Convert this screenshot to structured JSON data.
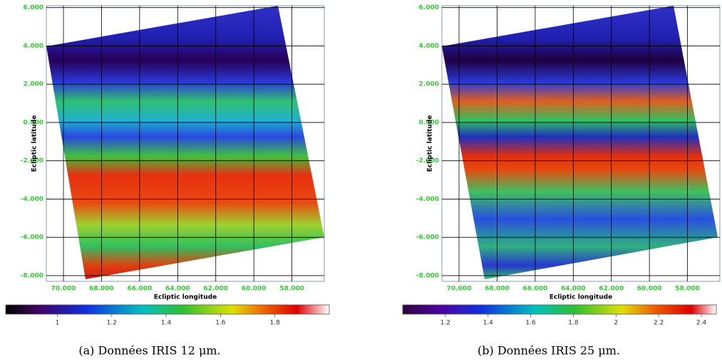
{
  "chart_data": [
    {
      "type": "heatmap",
      "xlabel": "Ecliptic longitude",
      "ylabel": "Ecliptic latitude",
      "xlim": [
        70.9,
        56.3
      ],
      "ylim": [
        -8.3,
        6.1
      ],
      "xticks": [
        {
          "value": 70,
          "label": "70.000"
        },
        {
          "value": 68,
          "label": "68.000"
        },
        {
          "value": 66,
          "label": "66.000"
        },
        {
          "value": 64,
          "label": "64.000"
        },
        {
          "value": 62,
          "label": "62.000"
        },
        {
          "value": 60,
          "label": "60.000"
        },
        {
          "value": 58,
          "label": "58.000"
        }
      ],
      "yticks": [
        {
          "value": 6,
          "label": "6.000"
        },
        {
          "value": 4,
          "label": "4.000"
        },
        {
          "value": 2,
          "label": "2.000"
        },
        {
          "value": 0,
          "label": "0.000"
        },
        {
          "value": -2,
          "label": "-2.000"
        },
        {
          "value": -4,
          "label": "-4.000"
        },
        {
          "value": -6,
          "label": "-6.000"
        },
        {
          "value": -8,
          "label": "-8.000"
        }
      ],
      "colorbar": {
        "lim": [
          0.81,
          2.0
        ],
        "ticks": [
          1,
          1.2,
          1.4,
          1.6,
          1.8
        ]
      },
      "caption": "(a)  Données IRIS 12 μm."
    },
    {
      "type": "heatmap",
      "xlabel": "Ecliptic longitude",
      "ylabel": "Ecliptic latitude",
      "xlim": [
        70.9,
        56.3
      ],
      "ylim": [
        -8.3,
        6.1
      ],
      "xticks": [
        {
          "value": 70,
          "label": "70.000"
        },
        {
          "value": 68,
          "label": "68.000"
        },
        {
          "value": 66,
          "label": "66.000"
        },
        {
          "value": 64,
          "label": "64.000"
        },
        {
          "value": 62,
          "label": "62.000"
        },
        {
          "value": 60,
          "label": "60.000"
        },
        {
          "value": 58,
          "label": "58.000"
        }
      ],
      "yticks": [
        {
          "value": 6,
          "label": "6.000"
        },
        {
          "value": 4,
          "label": "4.000"
        },
        {
          "value": 2,
          "label": "2.000"
        },
        {
          "value": 0,
          "label": "0.000"
        },
        {
          "value": -2,
          "label": "-2.000"
        },
        {
          "value": -4,
          "label": "-4.000"
        },
        {
          "value": -6,
          "label": "-6.000"
        },
        {
          "value": -8,
          "label": "-8.000"
        }
      ],
      "colorbar": {
        "lim": [
          1.0,
          2.47
        ],
        "ticks": [
          1.2,
          1.4,
          1.6,
          1.8,
          2,
          2.2,
          2.4
        ]
      },
      "caption": "(b) Données IRIS 25 μm."
    }
  ]
}
